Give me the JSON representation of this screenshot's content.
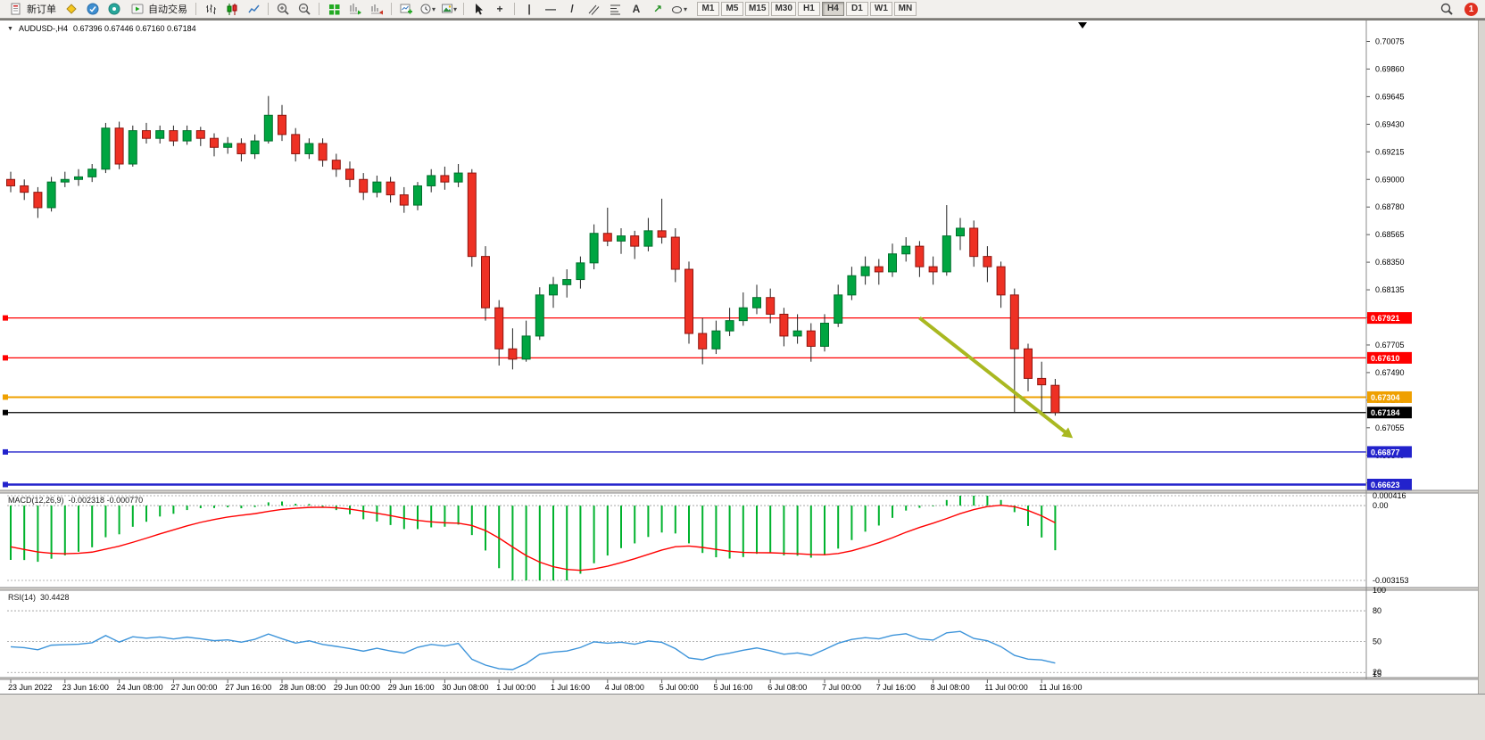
{
  "colors": {
    "up": "#00a541",
    "up_border": "#00702c",
    "down": "#ee3124",
    "down_border": "#8e150f",
    "wick": "#222222",
    "macd_hist": "#00b22d",
    "macd_signal": "#ff0000",
    "rsi_line": "#3d94da",
    "arrow": "#a9b821"
  },
  "icons": {
    "crosshair": "+",
    "vertical_line": "|",
    "horizontal_line": "—",
    "trendline": "/",
    "text_tool": "A",
    "arrows_tool": "↗",
    "dropdown_arrow": "▾",
    "ohlc_toggle": "▼"
  },
  "toolbar": {
    "new_order_label": "新订单",
    "autotrading_label": "自动交易",
    "timeframes": [
      "M1",
      "M5",
      "M15",
      "M30",
      "H1",
      "H4",
      "D1",
      "W1",
      "MN"
    ],
    "active_timeframe": "H4",
    "notification_count": "1"
  },
  "chart_data": {
    "type": "candlestick",
    "title": "AUDUSD-,H4",
    "ohlc_text": "0.67396 0.67446 0.67160 0.67184",
    "y_ticks": [
      "0.70075",
      "0.69860",
      "0.69645",
      "0.69430",
      "0.69215",
      "0.69000",
      "0.68780",
      "0.68565",
      "0.68350",
      "0.68135",
      "0.67920",
      "0.67705",
      "0.67490",
      "0.67270",
      "0.67055",
      "0.66840",
      "0.66623"
    ],
    "x_labels": [
      {
        "bar": 0,
        "label": "23 Jun 2022"
      },
      {
        "bar": 4,
        "label": "23 Jun 16:00"
      },
      {
        "bar": 8,
        "label": "24 Jun 08:00"
      },
      {
        "bar": 12,
        "label": "27 Jun 00:00"
      },
      {
        "bar": 16,
        "label": "27 Jun 16:00"
      },
      {
        "bar": 20,
        "label": "28 Jun 08:00"
      },
      {
        "bar": 24,
        "label": "29 Jun 00:00"
      },
      {
        "bar": 28,
        "label": "29 Jun 16:00"
      },
      {
        "bar": 32,
        "label": "30 Jun 08:00"
      },
      {
        "bar": 36,
        "label": "1 Jul 00:00"
      },
      {
        "bar": 40,
        "label": "1 Jul 16:00"
      },
      {
        "bar": 44,
        "label": "4 Jul 08:00"
      },
      {
        "bar": 48,
        "label": "5 Jul 00:00"
      },
      {
        "bar": 52,
        "label": "5 Jul 16:00"
      },
      {
        "bar": 56,
        "label": "6 Jul 08:00"
      },
      {
        "bar": 60,
        "label": "7 Jul 00:00"
      },
      {
        "bar": 64,
        "label": "7 Jul 16:00"
      },
      {
        "bar": 68,
        "label": "8 Jul 08:00"
      },
      {
        "bar": 72,
        "label": "11 Jul 00:00"
      },
      {
        "bar": 76,
        "label": "11 Jul 16:00"
      }
    ],
    "price_lines": [
      {
        "price": 0.67921,
        "label": "0.67921",
        "color": "#ff0000",
        "width": 1.3
      },
      {
        "price": 0.6761,
        "label": "0.67610",
        "color": "#ff0000",
        "width": 1.3
      },
      {
        "price": 0.67304,
        "label": "0.67304",
        "color": "#efa000",
        "width": 2
      },
      {
        "price": 0.67184,
        "label": "0.67184",
        "color": "#000000",
        "width": 1.2
      },
      {
        "price": 0.66877,
        "label": "0.66877",
        "color": "#2222cc",
        "width": 1.3
      },
      {
        "price": 0.66623,
        "label": "0.66623",
        "color": "#2222cc",
        "width": 2.5
      }
    ],
    "candles": [
      [
        0.69,
        0.6906,
        0.689,
        0.6895
      ],
      [
        0.6895,
        0.69,
        0.6884,
        0.689
      ],
      [
        0.689,
        0.6894,
        0.687,
        0.6878
      ],
      [
        0.6878,
        0.6902,
        0.6875,
        0.6898
      ],
      [
        0.6898,
        0.6906,
        0.6894,
        0.69
      ],
      [
        0.69,
        0.6908,
        0.6895,
        0.6902
      ],
      [
        0.6902,
        0.6912,
        0.6898,
        0.6908
      ],
      [
        0.6908,
        0.6944,
        0.6905,
        0.694
      ],
      [
        0.694,
        0.6945,
        0.6908,
        0.6912
      ],
      [
        0.6912,
        0.6942,
        0.691,
        0.6938
      ],
      [
        0.6938,
        0.6944,
        0.6928,
        0.6932
      ],
      [
        0.6932,
        0.6942,
        0.6928,
        0.6938
      ],
      [
        0.6938,
        0.6942,
        0.6926,
        0.693
      ],
      [
        0.693,
        0.6942,
        0.6927,
        0.6938
      ],
      [
        0.6938,
        0.6941,
        0.6926,
        0.6932
      ],
      [
        0.6932,
        0.6936,
        0.6918,
        0.6925
      ],
      [
        0.6925,
        0.6933,
        0.692,
        0.6928
      ],
      [
        0.6928,
        0.6932,
        0.6914,
        0.692
      ],
      [
        0.692,
        0.6935,
        0.6916,
        0.693
      ],
      [
        0.693,
        0.6965,
        0.6928,
        0.695
      ],
      [
        0.695,
        0.6958,
        0.693,
        0.6935
      ],
      [
        0.6935,
        0.694,
        0.6914,
        0.692
      ],
      [
        0.692,
        0.6932,
        0.6916,
        0.6928
      ],
      [
        0.6928,
        0.6932,
        0.691,
        0.6915
      ],
      [
        0.6915,
        0.692,
        0.6902,
        0.6908
      ],
      [
        0.6908,
        0.6914,
        0.6894,
        0.69
      ],
      [
        0.69,
        0.6905,
        0.6884,
        0.689
      ],
      [
        0.689,
        0.6903,
        0.6886,
        0.6898
      ],
      [
        0.6898,
        0.6902,
        0.6882,
        0.6888
      ],
      [
        0.6888,
        0.6894,
        0.6874,
        0.688
      ],
      [
        0.688,
        0.6898,
        0.6876,
        0.6895
      ],
      [
        0.6895,
        0.6908,
        0.689,
        0.6903
      ],
      [
        0.6903,
        0.691,
        0.6892,
        0.6898
      ],
      [
        0.6898,
        0.6912,
        0.6894,
        0.6905
      ],
      [
        0.6905,
        0.6908,
        0.6832,
        0.684
      ],
      [
        0.684,
        0.6848,
        0.679,
        0.68
      ],
      [
        0.68,
        0.6806,
        0.6755,
        0.6768
      ],
      [
        0.6768,
        0.6784,
        0.6752,
        0.676
      ],
      [
        0.676,
        0.679,
        0.6758,
        0.6778
      ],
      [
        0.6778,
        0.6816,
        0.6775,
        0.681
      ],
      [
        0.681,
        0.6824,
        0.68,
        0.6818
      ],
      [
        0.6818,
        0.683,
        0.6808,
        0.6822
      ],
      [
        0.6822,
        0.684,
        0.6815,
        0.6835
      ],
      [
        0.6835,
        0.6865,
        0.683,
        0.6858
      ],
      [
        0.6858,
        0.6878,
        0.6848,
        0.6852
      ],
      [
        0.6852,
        0.6862,
        0.6842,
        0.6856
      ],
      [
        0.6856,
        0.686,
        0.6838,
        0.6848
      ],
      [
        0.6848,
        0.687,
        0.6844,
        0.686
      ],
      [
        0.686,
        0.6885,
        0.685,
        0.6855
      ],
      [
        0.6855,
        0.6862,
        0.682,
        0.683
      ],
      [
        0.683,
        0.6836,
        0.6772,
        0.678
      ],
      [
        0.678,
        0.6792,
        0.6756,
        0.6768
      ],
      [
        0.6768,
        0.679,
        0.6764,
        0.6782
      ],
      [
        0.6782,
        0.68,
        0.6778,
        0.679
      ],
      [
        0.679,
        0.6812,
        0.6786,
        0.68
      ],
      [
        0.68,
        0.6818,
        0.6795,
        0.6808
      ],
      [
        0.6808,
        0.6815,
        0.6788,
        0.6795
      ],
      [
        0.6795,
        0.68,
        0.677,
        0.6778
      ],
      [
        0.6778,
        0.6795,
        0.6772,
        0.6782
      ],
      [
        0.6782,
        0.6788,
        0.6758,
        0.677
      ],
      [
        0.677,
        0.6795,
        0.6766,
        0.6788
      ],
      [
        0.6788,
        0.6818,
        0.6785,
        0.681
      ],
      [
        0.681,
        0.6832,
        0.6806,
        0.6825
      ],
      [
        0.6825,
        0.684,
        0.6818,
        0.6832
      ],
      [
        0.6832,
        0.6838,
        0.6818,
        0.6828
      ],
      [
        0.6828,
        0.685,
        0.6824,
        0.6842
      ],
      [
        0.6842,
        0.6855,
        0.6836,
        0.6848
      ],
      [
        0.6848,
        0.6852,
        0.6824,
        0.6832
      ],
      [
        0.6832,
        0.684,
        0.6818,
        0.6828
      ],
      [
        0.6828,
        0.688,
        0.6825,
        0.6856
      ],
      [
        0.6856,
        0.687,
        0.6845,
        0.6862
      ],
      [
        0.6862,
        0.6868,
        0.6832,
        0.684
      ],
      [
        0.684,
        0.6848,
        0.682,
        0.6832
      ],
      [
        0.6832,
        0.6836,
        0.68,
        0.681
      ],
      [
        0.681,
        0.6815,
        0.6718,
        0.6768
      ],
      [
        0.6768,
        0.6772,
        0.6735,
        0.6745
      ],
      [
        0.6745,
        0.6758,
        0.6716,
        0.674
      ],
      [
        0.67396,
        0.67446,
        0.6716,
        0.67184
      ]
    ],
    "indicators": {
      "macd": {
        "label": "MACD(12,26,9)",
        "values_text": "-0.002318 -0.000770",
        "params": [
          12,
          26,
          9
        ],
        "scale_max": 0.000416,
        "scale_min": -0.003153,
        "levels": [
          "0.000416",
          "0.00",
          "-0.003153"
        ],
        "seed_ema12": 0.6915,
        "seed_ema26": 0.6938,
        "seed_signal": -0.0016
      },
      "rsi": {
        "label": "RSI(14)",
        "value_text": "30.4428",
        "period": 14,
        "scale_min": 15,
        "scale_max": 100,
        "levels": [
          100,
          80,
          50,
          20,
          15
        ],
        "seed_gain": 0.0009,
        "seed_loss": 0.0011
      }
    },
    "annotation_arrow": {
      "from_bar": 67,
      "from_price": 0.67921,
      "to_bar": 78.3,
      "to_price": 0.66985
    }
  }
}
